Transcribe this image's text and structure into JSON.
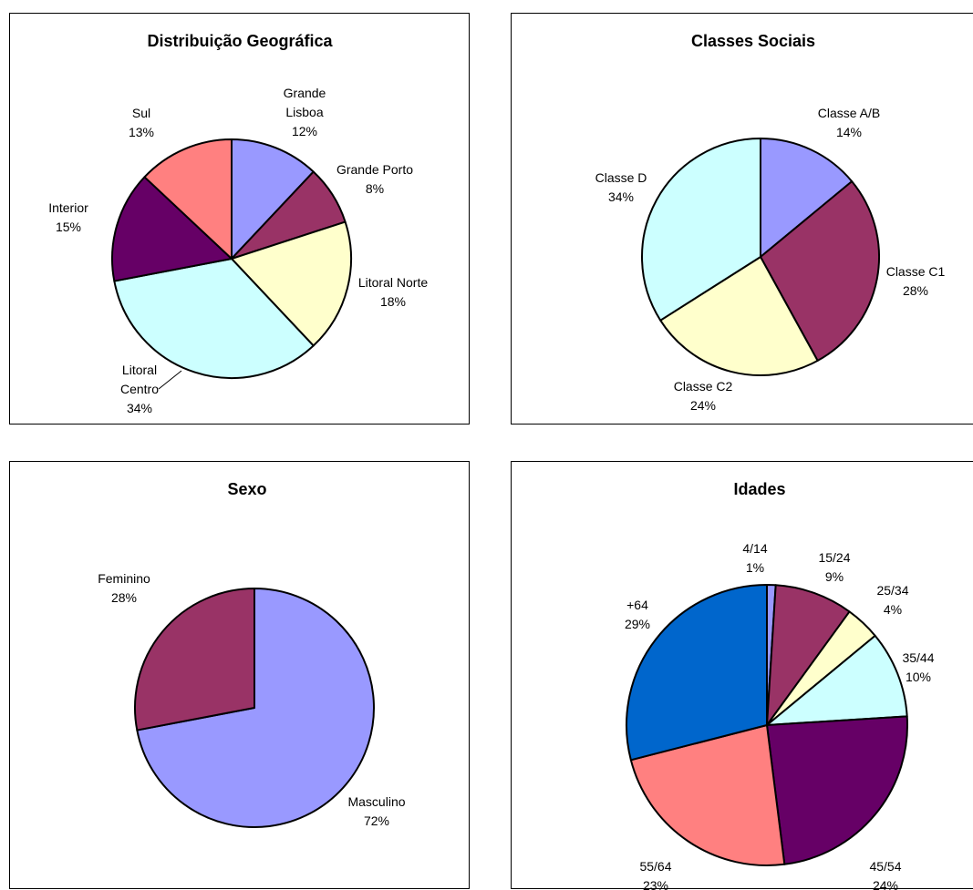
{
  "chart_data": [
    {
      "type": "pie",
      "title": "Distribuição Geográfica",
      "slices": [
        {
          "label": "Grande Lisboa",
          "value": 12,
          "pct": "12%",
          "color": "#9999FF"
        },
        {
          "label": "Grande Porto",
          "value": 8,
          "pct": "8%",
          "color": "#993366"
        },
        {
          "label": "Litoral Norte",
          "value": 18,
          "pct": "18%",
          "color": "#FFFFCC"
        },
        {
          "label": "Litoral Centro",
          "value": 34,
          "pct": "34%",
          "color": "#CCFFFF"
        },
        {
          "label": "Interior",
          "value": 15,
          "pct": "15%",
          "color": "#660066"
        },
        {
          "label": "Sul",
          "value": 13,
          "pct": "13%",
          "color": "#FF8080"
        }
      ]
    },
    {
      "type": "pie",
      "title": "Classes Sociais",
      "slices": [
        {
          "label": "Classe A/B",
          "value": 14,
          "pct": "14%",
          "color": "#9999FF"
        },
        {
          "label": "Classe C1",
          "value": 28,
          "pct": "28%",
          "color": "#993366"
        },
        {
          "label": "Classe C2",
          "value": 24,
          "pct": "24%",
          "color": "#FFFFCC"
        },
        {
          "label": "Classe D",
          "value": 34,
          "pct": "34%",
          "color": "#CCFFFF"
        }
      ]
    },
    {
      "type": "pie",
      "title": "Sexo",
      "slices": [
        {
          "label": "Masculino",
          "value": 72,
          "pct": "72%",
          "color": "#9999FF"
        },
        {
          "label": "Feminino",
          "value": 28,
          "pct": "28%",
          "color": "#993366"
        }
      ]
    },
    {
      "type": "pie",
      "title": "Idades",
      "slices": [
        {
          "label": "4/14",
          "value": 1,
          "pct": "1%",
          "color": "#9999FF"
        },
        {
          "label": "15/24",
          "value": 9,
          "pct": "9%",
          "color": "#993366"
        },
        {
          "label": "25/34",
          "value": 4,
          "pct": "4%",
          "color": "#FFFFCC"
        },
        {
          "label": "35/44",
          "value": 10,
          "pct": "10%",
          "color": "#CCFFFF"
        },
        {
          "label": "45/54",
          "value": 24,
          "pct": "24%",
          "color": "#660066"
        },
        {
          "label": "55/64",
          "value": 23,
          "pct": "23%",
          "color": "#FF8080"
        },
        {
          "label": "+64",
          "value": 29,
          "pct": "29%",
          "color": "#0066CC"
        }
      ]
    }
  ]
}
